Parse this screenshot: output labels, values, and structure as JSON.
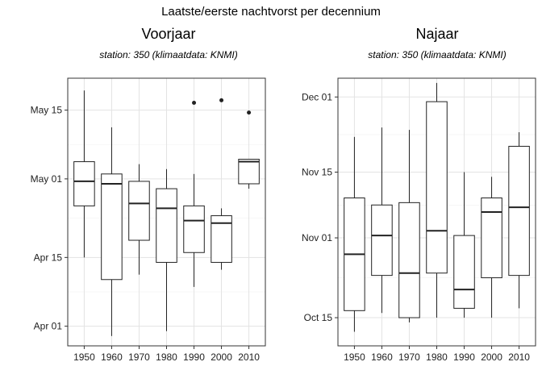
{
  "page_title": "Laatste/eerste nachtvorst per decennium",
  "colors": {
    "panel_border": "#333333",
    "grid_major": "#e3e3e3",
    "grid_minor": "#f0f0f0",
    "box_stroke": "#222222"
  },
  "chart_data": [
    {
      "type": "box",
      "title": "Voorjaar",
      "subtitle": "station: 350 (klimaatdata: KNMI)",
      "xlabel": "",
      "ylabel": "",
      "grid": true,
      "y_unit": "day-of-year",
      "ylim": [
        87,
        141.5
      ],
      "y_ticks": [
        {
          "label": "Apr 01",
          "value": 91
        },
        {
          "label": "Apr 15",
          "value": 105
        },
        {
          "label": "May 01",
          "value": 121
        },
        {
          "label": "May 15",
          "value": 135
        }
      ],
      "categories": [
        "1950",
        "1960",
        "1970",
        "1980",
        "1990",
        "2000",
        "2010"
      ],
      "boxes": [
        {
          "category": "1950",
          "whisker_low": 105,
          "q1": 115.5,
          "median": 120.5,
          "q3": 124.5,
          "whisker_high": 139,
          "outliers": []
        },
        {
          "category": "1960",
          "whisker_low": 89,
          "q1": 100.5,
          "median": 120,
          "q3": 122,
          "whisker_high": 131.5,
          "outliers": []
        },
        {
          "category": "1970",
          "whisker_low": 101.5,
          "q1": 108.5,
          "median": 116,
          "q3": 120.5,
          "whisker_high": 124,
          "outliers": []
        },
        {
          "category": "1980",
          "whisker_low": 90,
          "q1": 104,
          "median": 115,
          "q3": 119,
          "whisker_high": 123,
          "outliers": []
        },
        {
          "category": "1990",
          "whisker_low": 99,
          "q1": 106,
          "median": 112.5,
          "q3": 115.5,
          "whisker_high": 122,
          "outliers": [
            136.5
          ]
        },
        {
          "category": "2000",
          "whisker_low": 102.5,
          "q1": 104,
          "median": 112,
          "q3": 113.5,
          "whisker_high": 115,
          "outliers": [
            137
          ]
        },
        {
          "category": "2010",
          "whisker_low": 119,
          "q1": 120,
          "median": 124.5,
          "q3": 125,
          "whisker_high": 125,
          "outliers": [
            134.5
          ]
        }
      ]
    },
    {
      "type": "box",
      "title": "Najaar",
      "subtitle": "station: 350 (klimaatdata: KNMI)",
      "xlabel": "",
      "ylabel": "",
      "grid": true,
      "y_unit": "day-of-year",
      "ylim": [
        282,
        339
      ],
      "y_ticks": [
        {
          "label": "Oct 15",
          "value": 288
        },
        {
          "label": "Nov 01",
          "value": 305
        },
        {
          "label": "Nov 15",
          "value": 319
        },
        {
          "label": "Dec 01",
          "value": 335
        }
      ],
      "categories": [
        "1950",
        "1960",
        "1970",
        "1980",
        "1990",
        "2000",
        "2010"
      ],
      "boxes": [
        {
          "category": "1950",
          "whisker_low": 285,
          "q1": 289.5,
          "median": 301.5,
          "q3": 313.5,
          "whisker_high": 326.5,
          "outliers": []
        },
        {
          "category": "1960",
          "whisker_low": 289,
          "q1": 297,
          "median": 305.5,
          "q3": 312,
          "whisker_high": 328.5,
          "outliers": []
        },
        {
          "category": "1970",
          "whisker_low": 287,
          "q1": 288,
          "median": 297.5,
          "q3": 312.5,
          "whisker_high": 328,
          "outliers": []
        },
        {
          "category": "1980",
          "whisker_low": 288,
          "q1": 297.5,
          "median": 306.5,
          "q3": 334,
          "whisker_high": 338,
          "outliers": []
        },
        {
          "category": "1990",
          "whisker_low": 288,
          "q1": 290,
          "median": 294,
          "q3": 305.5,
          "whisker_high": 319,
          "outliers": []
        },
        {
          "category": "2000",
          "whisker_low": 288,
          "q1": 296.5,
          "median": 310.5,
          "q3": 313.5,
          "whisker_high": 318,
          "outliers": []
        },
        {
          "category": "2010",
          "whisker_low": 290,
          "q1": 297,
          "median": 311.5,
          "q3": 324.5,
          "whisker_high": 327.5,
          "outliers": []
        }
      ]
    }
  ]
}
